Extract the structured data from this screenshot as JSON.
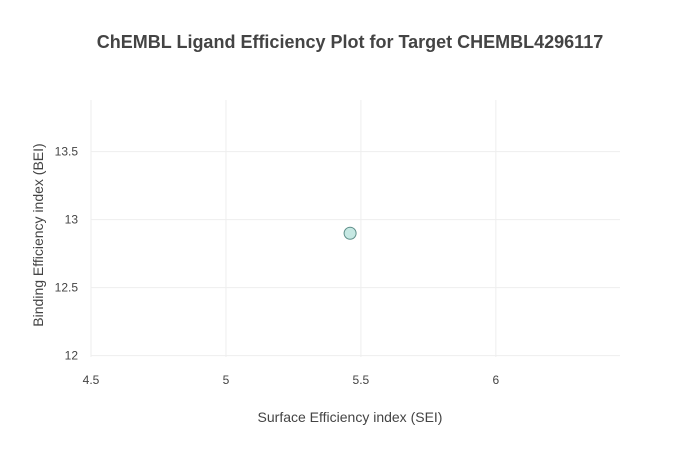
{
  "chart_data": {
    "type": "scatter",
    "title": "ChEMBL Ligand Efficiency Plot for Target CHEMBL4296117",
    "xlabel": "Surface Efficiency index (SEI)",
    "ylabel": "Binding Efficiency index (BEI)",
    "xlim": [
      4.5,
      6.46
    ],
    "ylim": [
      11.99,
      13.88
    ],
    "xticks": [
      4.5,
      5,
      5.5,
      6
    ],
    "xtick_labels": [
      "4.5",
      "5",
      "5.5",
      "6"
    ],
    "yticks": [
      12,
      12.5,
      13,
      13.5
    ],
    "ytick_labels": [
      "12",
      "12.5",
      "13",
      "13.5"
    ],
    "grid": true,
    "points": [
      {
        "x": 5.46,
        "y": 12.9
      }
    ],
    "marker_fill": "#c6e8e3",
    "marker_stroke": "#5f8f8a",
    "grid_color": "#eeeeee",
    "text_color": "#444444"
  }
}
